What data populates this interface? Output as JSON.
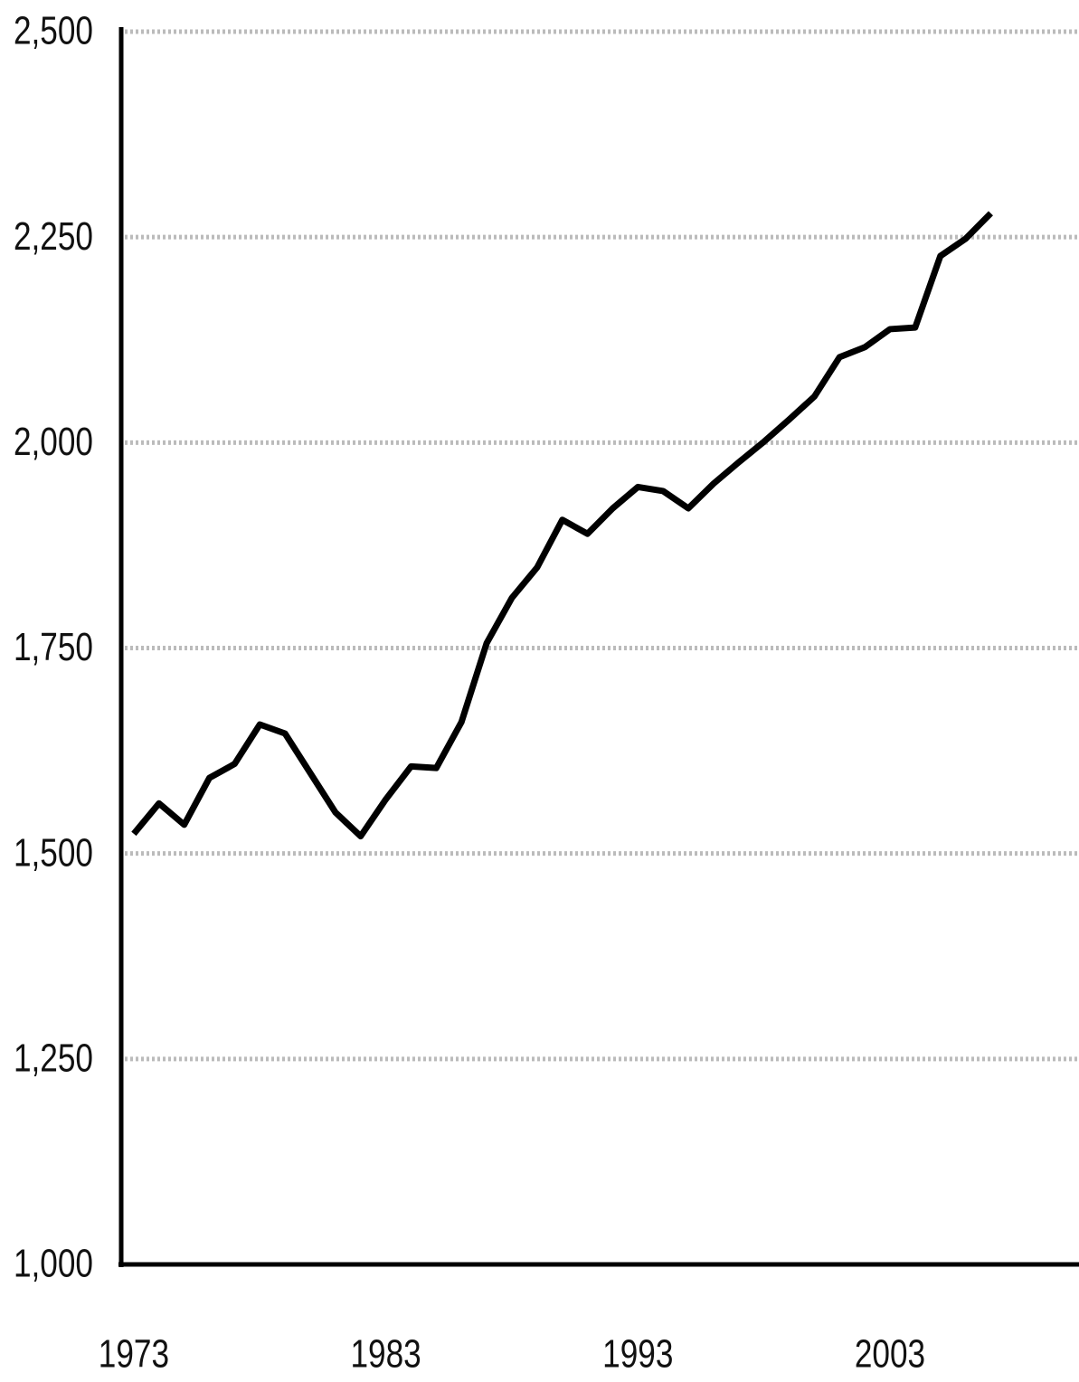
{
  "chart_data": {
    "type": "line",
    "x": [
      1973,
      1974,
      1975,
      1976,
      1977,
      1978,
      1979,
      1980,
      1981,
      1982,
      1983,
      1984,
      1985,
      1986,
      1987,
      1988,
      1989,
      1990,
      1991,
      1992,
      1993,
      1994,
      1995,
      1996,
      1997,
      1998,
      1999,
      2000,
      2001,
      2002,
      2003,
      2004,
      2005,
      2006,
      2007
    ],
    "series": [
      {
        "color": "#000000",
        "values": [
          1524,
          1561,
          1535,
          1592,
          1609,
          1657,
          1646,
          1598,
          1550,
          1521,
          1566,
          1606,
          1604,
          1660,
          1756,
          1811,
          1848,
          1906,
          1889,
          1920,
          1946,
          1941,
          1920,
          1950,
          1976,
          2001,
          2028,
          2056,
          2104,
          2116,
          2138,
          2140,
          2227,
          2248,
          2279
        ]
      }
    ],
    "xlim": [
      1972.5,
      2010.5
    ],
    "xticks": [
      1973,
      1983,
      1993,
      2003
    ],
    "ylim": [
      1000,
      2500
    ],
    "yticks": [
      {
        "value": 1000,
        "label": "1,000"
      },
      {
        "value": 1250,
        "label": "1,250"
      },
      {
        "value": 1500,
        "label": "1,500"
      },
      {
        "value": 1750,
        "label": "1,750"
      },
      {
        "value": 2000,
        "label": "2,000"
      },
      {
        "value": 2250,
        "label": "2,250"
      },
      {
        "value": 2500,
        "label": "2,500"
      }
    ],
    "grid": true
  }
}
